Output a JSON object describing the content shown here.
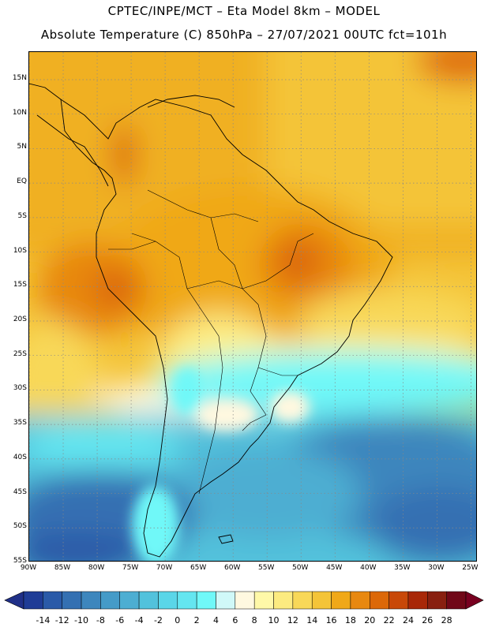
{
  "header": {
    "line1": "CPTEC/INPE/MCT –  Eta Model 8km – MODEL",
    "line2": "Absolute Temperature (C) 850hPa – 27/07/2021 00UTC fct=101h"
  },
  "map": {
    "lat_ticks": [
      "15N",
      "10N",
      "5N",
      "EQ",
      "5S",
      "10S",
      "15S",
      "20S",
      "25S",
      "30S",
      "35S",
      "40S",
      "45S",
      "50S",
      "55S"
    ],
    "lon_ticks": [
      "90W",
      "85W",
      "80W",
      "75W",
      "70W",
      "65W",
      "60W",
      "55W",
      "50W",
      "45W",
      "40W",
      "35W",
      "30W",
      "25W"
    ],
    "lat_values": [
      15,
      10,
      5,
      0,
      -5,
      -10,
      -15,
      -20,
      -25,
      -30,
      -35,
      -40,
      -45,
      -50,
      -55
    ],
    "lon_values": [
      -90,
      -85,
      -80,
      -75,
      -70,
      -65,
      -60,
      -55,
      -50,
      -45,
      -40,
      -35,
      -30,
      -25
    ],
    "extent": {
      "lon_min": -90,
      "lon_max": -24,
      "lat_min": -55,
      "lat_max": 19
    },
    "gridlines": "dotted",
    "variable": "temperature at 850hPa (C)"
  },
  "colorbar": {
    "labels": [
      "-14",
      "-12",
      "-10",
      "-8",
      "-6",
      "-4",
      "-2",
      "0",
      "2",
      "4",
      "6",
      "8",
      "10",
      "12",
      "14",
      "16",
      "18",
      "20",
      "22",
      "24",
      "26",
      "28"
    ],
    "colors": [
      "#1f3c96",
      "#2a5aa8",
      "#3470b2",
      "#3d86bd",
      "#459bc8",
      "#4daed2",
      "#52c2dc",
      "#5ad6e8",
      "#64e6f0",
      "#70f8f8",
      "#d0f8f8",
      "#fff8e0",
      "#fff8a8",
      "#fceb80",
      "#f8d858",
      "#f4c438",
      "#f0a818",
      "#e88810",
      "#dc6808",
      "#c84808",
      "#a82808",
      "#882010",
      "#700818"
    ],
    "under_color": "#203088",
    "over_color": "#780020"
  },
  "chart_data": {
    "type": "heatmap",
    "title": "Absolute Temperature (C) 850hPa – 27/07/2021 00UTC fct=101h",
    "xlabel": "",
    "ylabel": "",
    "xlim": [
      -90,
      -24
    ],
    "ylim": [
      -55,
      19
    ],
    "value_range": [
      -14,
      28
    ],
    "regions": [
      {
        "area": "northern tropics / Caribbean",
        "approx_value": 18
      },
      {
        "area": "Colombia Andes",
        "approx_value": 22
      },
      {
        "area": "central-east Brazil (Tocantins/Bahia)",
        "approx_value": 24
      },
      {
        "area": "Amazon basin",
        "approx_value": 18
      },
      {
        "area": "Pacific off Peru",
        "approx_value": 16
      },
      {
        "area": "southern Brazil / Uruguay",
        "approx_value": 6
      },
      {
        "area": "South Atlantic 30-40S",
        "approx_value": 2
      },
      {
        "area": "Patagonia / southern ocean",
        "approx_value": -4
      },
      {
        "area": "far south 50-55S",
        "approx_value": -10
      }
    ]
  }
}
